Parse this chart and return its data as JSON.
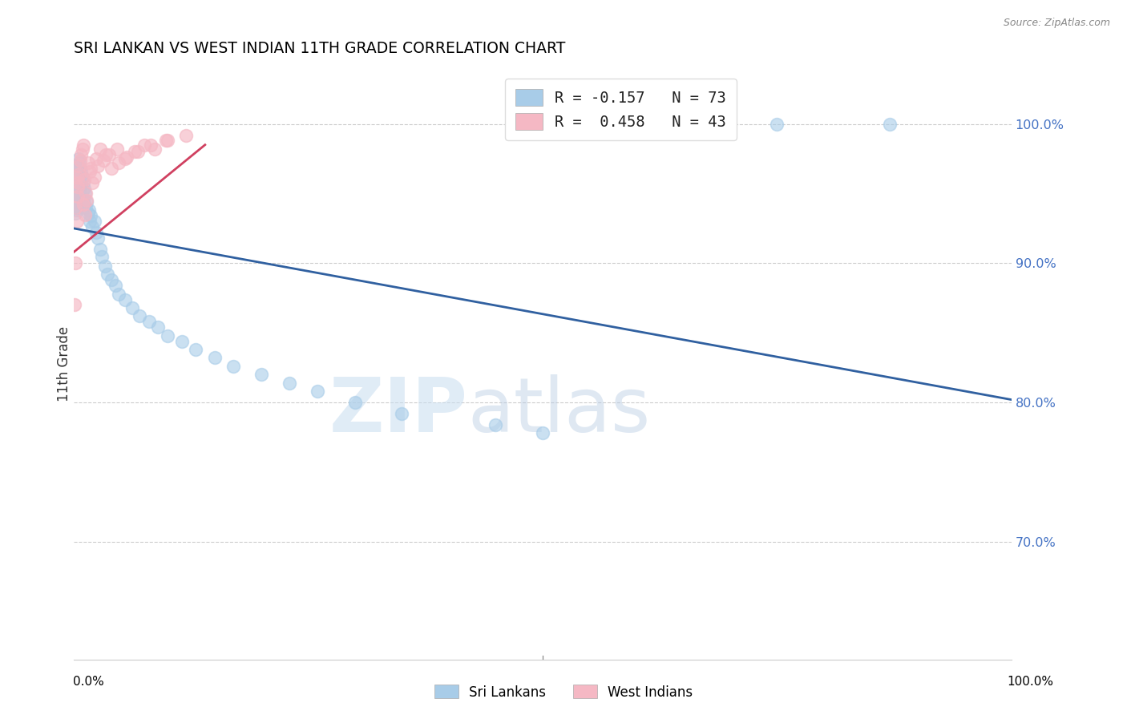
{
  "title": "SRI LANKAN VS WEST INDIAN 11TH GRADE CORRELATION CHART",
  "source": "Source: ZipAtlas.com",
  "ylabel": "11th Grade",
  "ytick_labels": [
    "100.0%",
    "90.0%",
    "80.0%",
    "70.0%"
  ],
  "ytick_values": [
    1.0,
    0.9,
    0.8,
    0.7
  ],
  "xlim": [
    0.0,
    1.0
  ],
  "ylim": [
    0.615,
    1.04
  ],
  "legend_blue_label": "R = -0.157   N = 73",
  "legend_pink_label": "R =  0.458   N = 43",
  "blue_color": "#a8cce8",
  "pink_color": "#f5b8c4",
  "blue_line_color": "#3060a0",
  "pink_line_color": "#d04060",
  "watermark_zip": "ZIP",
  "watermark_atlas": "atlas",
  "sri_lankans_x": [
    0.001,
    0.001,
    0.002,
    0.002,
    0.002,
    0.002,
    0.002,
    0.003,
    0.003,
    0.003,
    0.003,
    0.003,
    0.003,
    0.004,
    0.004,
    0.004,
    0.004,
    0.004,
    0.005,
    0.005,
    0.005,
    0.005,
    0.006,
    0.006,
    0.006,
    0.007,
    0.007,
    0.007,
    0.008,
    0.008,
    0.009,
    0.009,
    0.01,
    0.01,
    0.011,
    0.011,
    0.012,
    0.013,
    0.014,
    0.015,
    0.016,
    0.017,
    0.018,
    0.02,
    0.022,
    0.024,
    0.026,
    0.028,
    0.03,
    0.033,
    0.036,
    0.04,
    0.044,
    0.048,
    0.055,
    0.062,
    0.07,
    0.08,
    0.09,
    0.1,
    0.115,
    0.13,
    0.15,
    0.17,
    0.2,
    0.23,
    0.26,
    0.3,
    0.35,
    0.45,
    0.5,
    0.75,
    0.87
  ],
  "sri_lankans_y": [
    0.96,
    0.955,
    0.952,
    0.948,
    0.944,
    0.94,
    0.936,
    0.97,
    0.965,
    0.958,
    0.95,
    0.945,
    0.938,
    0.968,
    0.96,
    0.952,
    0.946,
    0.94,
    0.975,
    0.968,
    0.96,
    0.954,
    0.972,
    0.962,
    0.952,
    0.968,
    0.958,
    0.948,
    0.966,
    0.956,
    0.962,
    0.952,
    0.958,
    0.946,
    0.954,
    0.942,
    0.95,
    0.94,
    0.944,
    0.936,
    0.938,
    0.93,
    0.934,
    0.926,
    0.93,
    0.922,
    0.918,
    0.91,
    0.905,
    0.898,
    0.892,
    0.888,
    0.884,
    0.878,
    0.874,
    0.868,
    0.862,
    0.858,
    0.854,
    0.848,
    0.844,
    0.838,
    0.832,
    0.826,
    0.82,
    0.814,
    0.808,
    0.8,
    0.792,
    0.784,
    0.778,
    1.0,
    1.0
  ],
  "west_indians_x": [
    0.001,
    0.002,
    0.002,
    0.003,
    0.003,
    0.004,
    0.004,
    0.005,
    0.005,
    0.006,
    0.007,
    0.008,
    0.009,
    0.01,
    0.011,
    0.013,
    0.015,
    0.017,
    0.02,
    0.024,
    0.028,
    0.034,
    0.04,
    0.048,
    0.056,
    0.065,
    0.075,
    0.086,
    0.098,
    0.01,
    0.012,
    0.014,
    0.018,
    0.022,
    0.026,
    0.032,
    0.038,
    0.046,
    0.055,
    0.068,
    0.082,
    0.1,
    0.12
  ],
  "west_indians_y": [
    0.87,
    0.9,
    0.94,
    0.93,
    0.962,
    0.955,
    0.948,
    0.958,
    0.97,
    0.964,
    0.974,
    0.978,
    0.982,
    0.985,
    0.96,
    0.95,
    0.972,
    0.966,
    0.958,
    0.975,
    0.982,
    0.978,
    0.968,
    0.972,
    0.976,
    0.98,
    0.985,
    0.982,
    0.988,
    0.942,
    0.935,
    0.945,
    0.968,
    0.962,
    0.97,
    0.974,
    0.978,
    0.982,
    0.975,
    0.98,
    0.985,
    0.988,
    0.992
  ],
  "blue_trendline_x": [
    0.0,
    1.0
  ],
  "blue_trendline_y": [
    0.925,
    0.802
  ],
  "pink_trendline_x": [
    0.0,
    0.14
  ],
  "pink_trendline_y": [
    0.908,
    0.985
  ]
}
